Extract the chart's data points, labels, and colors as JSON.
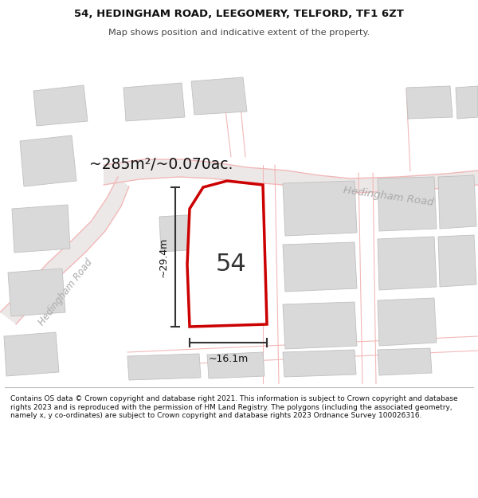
{
  "title_line1": "54, HEDINGHAM ROAD, LEEGOMERY, TELFORD, TF1 6ZT",
  "title_line2": "Map shows position and indicative extent of the property.",
  "area_text": "~285m²/~0.070ac.",
  "number_label": "54",
  "dim_width": "~16.1m",
  "dim_height": "~29.4m",
  "road_label_right": "Hedingham Road",
  "road_label_left": "Hedingham Road",
  "footer_text": "Contains OS data © Crown copyright and database right 2021. This information is subject to Crown copyright and database rights 2023 and is reproduced with the permission of HM Land Registry. The polygons (including the associated geometry, namely x, y co-ordinates) are subject to Crown copyright and database rights 2023 Ordnance Survey 100026316.",
  "map_bg_color": "#f5f2f2",
  "building_color": "#d9d9d9",
  "building_edge_color": "#c0c0c0",
  "road_line_color": "#f2b8b8",
  "road_fill_color": "#ede8e8",
  "highlight_color": "#cc0000",
  "highlight_fill": "#ffffff",
  "dim_line_color": "#333333",
  "footer_bg": "#ffffff",
  "title_bg": "#ffffff",
  "label_color_gray": "#aaaaaa"
}
